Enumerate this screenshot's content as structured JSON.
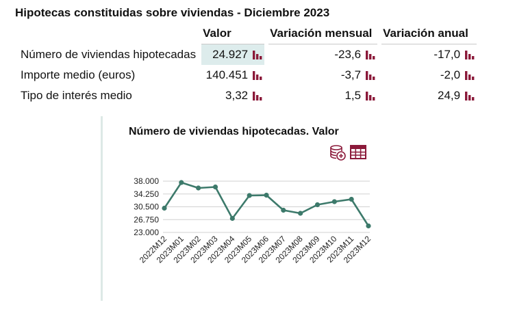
{
  "title": "Hipotecas constituidas sobre viviendas - Diciembre 2023",
  "table": {
    "headers": [
      "Valor",
      "Variación mensual",
      "Variación anual"
    ],
    "rows": [
      {
        "label": "Número de viviendas hipotecadas",
        "valor": "24.927",
        "mensual": "-23,6",
        "anual": "-17,0"
      },
      {
        "label": "Importe medio (euros)",
        "valor": "140.451",
        "mensual": "-3,7",
        "anual": "-2,0"
      },
      {
        "label": "Tipo de interés medio",
        "valor": "3,32",
        "mensual": "1,5",
        "anual": "24,9"
      }
    ]
  },
  "chart_panel": {
    "title": "Número de viviendas hipotecadas. Valor",
    "icons": [
      "database-add-icon",
      "table-icon"
    ]
  },
  "colors": {
    "accent": "#8b1a3a",
    "line": "#3d7a6b",
    "highlight": "#ddecec",
    "grid": "#d0d0d0"
  },
  "chart_data": {
    "type": "line",
    "title": "Número de viviendas hipotecadas. Valor",
    "categories": [
      "2022M12",
      "2023M01",
      "2023M02",
      "2023M03",
      "2023M04",
      "2023M05",
      "2023M06",
      "2023M07",
      "2023M08",
      "2023M09",
      "2023M10",
      "2023M11",
      "2023M12"
    ],
    "series": [
      {
        "values": [
          30100,
          37600,
          36000,
          36300,
          27100,
          33800,
          33900,
          29500,
          28600,
          31100,
          32000,
          32700,
          24900
        ]
      }
    ],
    "ylim": [
      23000,
      38000
    ],
    "yticks": [
      "38.000",
      "34.250",
      "30.500",
      "26.750",
      "23.000"
    ],
    "ytick_values": [
      38000,
      34250,
      30500,
      26750,
      23000
    ],
    "grid": true
  }
}
